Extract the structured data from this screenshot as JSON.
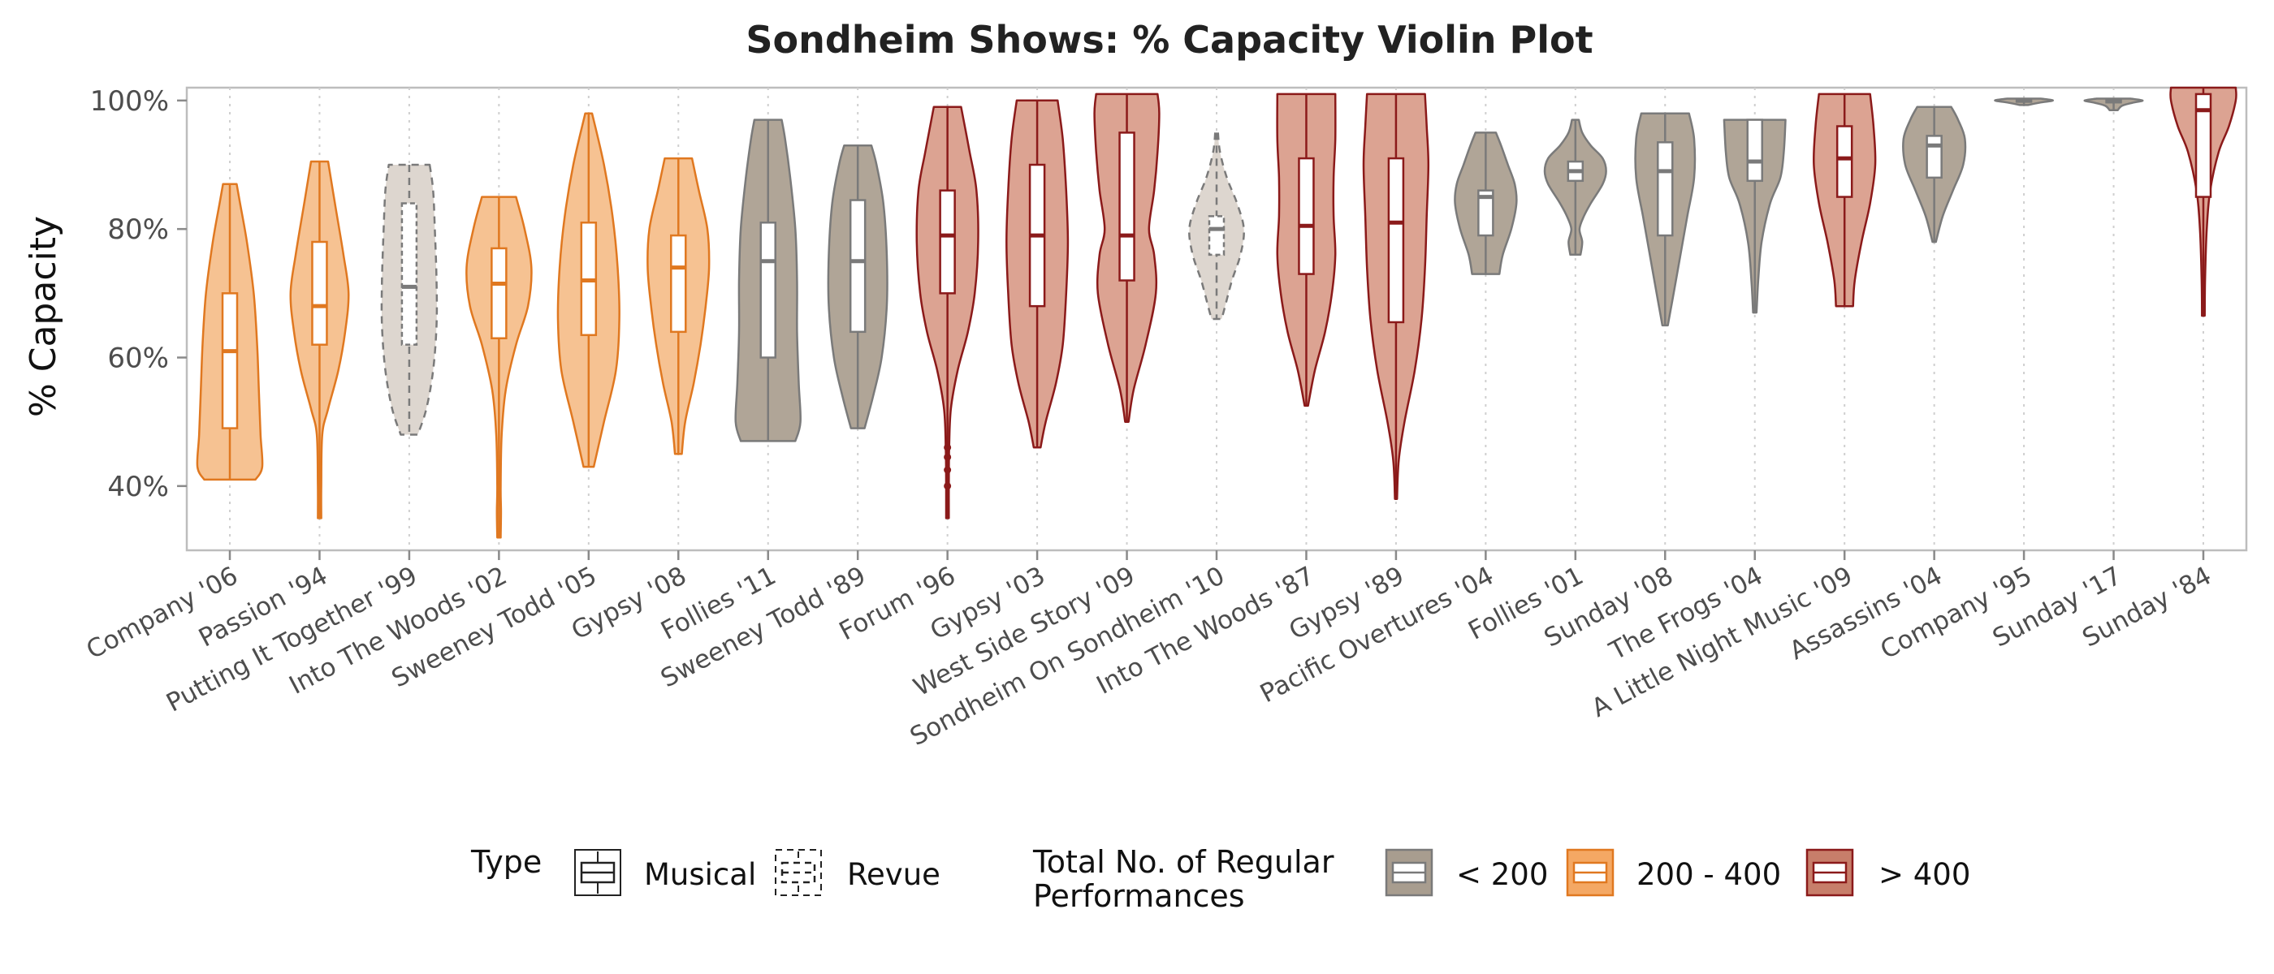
{
  "chart_data": {
    "type": "violin",
    "title": "Sondheim Shows: % Capacity Violin Plot",
    "xlabel": "",
    "ylabel": "% Capacity",
    "ylim": [
      30,
      102
    ],
    "yticks": [
      40,
      60,
      80,
      100
    ],
    "ytick_labels": [
      "40%",
      "60%",
      "80%",
      "100%"
    ],
    "grid": "vertical dotted",
    "legend_position": "bottom",
    "colors": {
      "lt200": "#b3a89a",
      "200to400": "#f6c090",
      "gt400": "#dba08f"
    },
    "edge_colors": {
      "lt200": "#7a7a7a",
      "200to400": "#e07820",
      "gt400": "#8b1a1a"
    },
    "shows": [
      {
        "label": "Company '06",
        "type": "Musical",
        "group": "200to400",
        "min": 41,
        "q1": 49,
        "median": 61,
        "q3": 70,
        "max": 87,
        "profile": [
          [
            41,
            0.75
          ],
          [
            43,
            0.95
          ],
          [
            48,
            0.9
          ],
          [
            55,
            0.85
          ],
          [
            62,
            0.8
          ],
          [
            70,
            0.7
          ],
          [
            78,
            0.5
          ],
          [
            84,
            0.3
          ],
          [
            87,
            0.2
          ]
        ]
      },
      {
        "label": "Passion '94",
        "type": "Musical",
        "group": "200to400",
        "min": 35,
        "q1": 62,
        "median": 68,
        "q3": 78,
        "max": 90.5,
        "profile": [
          [
            35,
            0.05
          ],
          [
            40,
            0.05
          ],
          [
            48,
            0.08
          ],
          [
            52,
            0.25
          ],
          [
            58,
            0.55
          ],
          [
            64,
            0.75
          ],
          [
            70,
            0.85
          ],
          [
            76,
            0.7
          ],
          [
            84,
            0.45
          ],
          [
            90.5,
            0.25
          ]
        ]
      },
      {
        "label": "Putting It Together '99",
        "type": "Revue",
        "group": "lt200",
        "min": 48,
        "q1": 62,
        "median": 71,
        "q3": 84,
        "max": 90,
        "profile": [
          [
            48,
            0.25
          ],
          [
            52,
            0.5
          ],
          [
            58,
            0.7
          ],
          [
            65,
            0.8
          ],
          [
            72,
            0.8
          ],
          [
            80,
            0.75
          ],
          [
            86,
            0.7
          ],
          [
            90,
            0.6
          ]
        ]
      },
      {
        "label": "Into The Woods '02",
        "type": "Musical",
        "group": "200to400",
        "min": 32,
        "q1": 63,
        "median": 71.5,
        "q3": 77,
        "max": 85,
        "profile": [
          [
            32,
            0.05
          ],
          [
            36,
            0.06
          ],
          [
            40,
            0.05
          ],
          [
            48,
            0.08
          ],
          [
            55,
            0.2
          ],
          [
            62,
            0.5
          ],
          [
            68,
            0.85
          ],
          [
            74,
            0.95
          ],
          [
            80,
            0.75
          ],
          [
            85,
            0.5
          ]
        ]
      },
      {
        "label": "Sweeney Todd '05",
        "type": "Musical",
        "group": "200to400",
        "min": 43,
        "q1": 63.5,
        "median": 72,
        "q3": 81,
        "max": 98,
        "profile": [
          [
            43,
            0.15
          ],
          [
            50,
            0.45
          ],
          [
            58,
            0.8
          ],
          [
            66,
            0.9
          ],
          [
            74,
            0.85
          ],
          [
            82,
            0.7
          ],
          [
            90,
            0.45
          ],
          [
            98,
            0.1
          ]
        ]
      },
      {
        "label": "Gypsy '08",
        "type": "Musical",
        "group": "200to400",
        "min": 45,
        "q1": 64,
        "median": 74,
        "q3": 79,
        "max": 91,
        "profile": [
          [
            45,
            0.1
          ],
          [
            50,
            0.2
          ],
          [
            56,
            0.45
          ],
          [
            62,
            0.65
          ],
          [
            68,
            0.8
          ],
          [
            74,
            0.9
          ],
          [
            80,
            0.85
          ],
          [
            86,
            0.6
          ],
          [
            91,
            0.4
          ]
        ]
      },
      {
        "label": "Follies '11",
        "type": "Musical",
        "group": "lt200",
        "min": 47,
        "q1": 60,
        "median": 75,
        "q3": 81,
        "max": 97,
        "profile": [
          [
            47,
            0.8
          ],
          [
            50,
            0.95
          ],
          [
            56,
            0.9
          ],
          [
            64,
            0.85
          ],
          [
            72,
            0.85
          ],
          [
            80,
            0.8
          ],
          [
            88,
            0.65
          ],
          [
            94,
            0.5
          ],
          [
            97,
            0.4
          ]
        ]
      },
      {
        "label": "Sweeney Todd '89",
        "type": "Musical",
        "group": "lt200",
        "min": 49,
        "q1": 64,
        "median": 75,
        "q3": 84.5,
        "max": 93,
        "profile": [
          [
            49,
            0.2
          ],
          [
            54,
            0.45
          ],
          [
            60,
            0.7
          ],
          [
            68,
            0.85
          ],
          [
            76,
            0.85
          ],
          [
            84,
            0.75
          ],
          [
            90,
            0.55
          ],
          [
            93,
            0.4
          ]
        ]
      },
      {
        "label": "Forum '96",
        "type": "Musical",
        "group": "gt400",
        "min": 35,
        "q1": 70,
        "median": 79,
        "q3": 86,
        "max": 99,
        "outliers": [
          40,
          42.5,
          44.5,
          46
        ],
        "profile": [
          [
            35,
            0.04
          ],
          [
            40,
            0.04
          ],
          [
            46,
            0.05
          ],
          [
            52,
            0.1
          ],
          [
            58,
            0.3
          ],
          [
            64,
            0.6
          ],
          [
            70,
            0.8
          ],
          [
            78,
            0.9
          ],
          [
            86,
            0.85
          ],
          [
            92,
            0.65
          ],
          [
            99,
            0.4
          ]
        ]
      },
      {
        "label": "Gypsy '03",
        "type": "Musical",
        "group": "gt400",
        "min": 46,
        "q1": 68,
        "median": 79,
        "q3": 90,
        "max": 100,
        "profile": [
          [
            46,
            0.1
          ],
          [
            50,
            0.25
          ],
          [
            56,
            0.55
          ],
          [
            62,
            0.75
          ],
          [
            70,
            0.85
          ],
          [
            78,
            0.9
          ],
          [
            86,
            0.85
          ],
          [
            94,
            0.75
          ],
          [
            100,
            0.6
          ]
        ]
      },
      {
        "label": "West Side Story '09",
        "type": "Musical",
        "group": "gt400",
        "min": 50,
        "q1": 72,
        "median": 79,
        "q3": 95,
        "max": 101,
        "profile": [
          [
            50,
            0.05
          ],
          [
            55,
            0.2
          ],
          [
            62,
            0.55
          ],
          [
            70,
            0.85
          ],
          [
            76,
            0.8
          ],
          [
            80,
            0.65
          ],
          [
            86,
            0.8
          ],
          [
            92,
            0.9
          ],
          [
            98,
            0.95
          ],
          [
            101,
            0.9
          ]
        ]
      },
      {
        "label": "Sondheim On Sondheim '10",
        "type": "Revue",
        "group": "lt200",
        "min": 66,
        "q1": 76,
        "median": 80,
        "q3": 82,
        "max": 95,
        "profile": [
          [
            66,
            0.15
          ],
          [
            68,
            0.25
          ],
          [
            72,
            0.45
          ],
          [
            76,
            0.7
          ],
          [
            80,
            0.8
          ],
          [
            84,
            0.6
          ],
          [
            88,
            0.3
          ],
          [
            92,
            0.1
          ],
          [
            95,
            0.04
          ]
        ]
      },
      {
        "label": "Into The Woods '87",
        "type": "Musical",
        "group": "gt400",
        "min": 52.5,
        "q1": 73,
        "median": 80.5,
        "q3": 91,
        "max": 101,
        "profile": [
          [
            52.5,
            0.05
          ],
          [
            58,
            0.25
          ],
          [
            64,
            0.55
          ],
          [
            70,
            0.75
          ],
          [
            76,
            0.85
          ],
          [
            82,
            0.8
          ],
          [
            88,
            0.8
          ],
          [
            94,
            0.85
          ],
          [
            101,
            0.85
          ]
        ]
      },
      {
        "label": "Gypsy '89",
        "type": "Musical",
        "group": "gt400",
        "min": 38,
        "q1": 65.5,
        "median": 81,
        "q3": 91,
        "max": 101,
        "profile": [
          [
            38,
            0.03
          ],
          [
            44,
            0.08
          ],
          [
            50,
            0.25
          ],
          [
            58,
            0.55
          ],
          [
            66,
            0.75
          ],
          [
            74,
            0.85
          ],
          [
            82,
            0.9
          ],
          [
            90,
            0.95
          ],
          [
            96,
            0.9
          ],
          [
            101,
            0.85
          ]
        ]
      },
      {
        "label": "Pacific Overtures '04",
        "type": "Musical",
        "group": "lt200",
        "min": 73,
        "q1": 79,
        "median": 85,
        "q3": 86,
        "max": 95,
        "profile": [
          [
            73,
            0.4
          ],
          [
            76,
            0.5
          ],
          [
            80,
            0.75
          ],
          [
            84,
            0.9
          ],
          [
            87,
            0.85
          ],
          [
            90,
            0.65
          ],
          [
            93,
            0.45
          ],
          [
            95,
            0.3
          ]
        ]
      },
      {
        "label": "Follies '01",
        "type": "Musical",
        "group": "lt200",
        "min": 76,
        "q1": 87.5,
        "median": 89,
        "q3": 90.5,
        "max": 97,
        "profile": [
          [
            76,
            0.15
          ],
          [
            78,
            0.2
          ],
          [
            80,
            0.12
          ],
          [
            82,
            0.25
          ],
          [
            84,
            0.45
          ],
          [
            87,
            0.8
          ],
          [
            89,
            0.9
          ],
          [
            91,
            0.8
          ],
          [
            93,
            0.45
          ],
          [
            95,
            0.2
          ],
          [
            97,
            0.1
          ]
        ]
      },
      {
        "label": "Sunday '08",
        "type": "Musical",
        "group": "lt200",
        "min": 65,
        "q1": 79,
        "median": 89,
        "q3": 93.5,
        "max": 98,
        "profile": [
          [
            65,
            0.08
          ],
          [
            70,
            0.25
          ],
          [
            76,
            0.45
          ],
          [
            82,
            0.65
          ],
          [
            88,
            0.85
          ],
          [
            94,
            0.85
          ],
          [
            98,
            0.7
          ]
        ]
      },
      {
        "label": "The Frogs '04",
        "type": "Musical",
        "group": "lt200",
        "min": 67,
        "q1": 87.5,
        "median": 90.5,
        "q3": 97,
        "max": 97,
        "profile": [
          [
            67,
            0.05
          ],
          [
            72,
            0.1
          ],
          [
            78,
            0.2
          ],
          [
            84,
            0.45
          ],
          [
            88,
            0.75
          ],
          [
            92,
            0.85
          ],
          [
            97,
            0.9
          ]
        ]
      },
      {
        "label": "A Little Night Music '09",
        "type": "Musical",
        "group": "gt400",
        "min": 68,
        "q1": 85,
        "median": 91,
        "q3": 96,
        "max": 101,
        "profile": [
          [
            68,
            0.25
          ],
          [
            72,
            0.3
          ],
          [
            78,
            0.5
          ],
          [
            84,
            0.75
          ],
          [
            90,
            0.9
          ],
          [
            96,
            0.85
          ],
          [
            101,
            0.75
          ]
        ]
      },
      {
        "label": "Assassins '04",
        "type": "Musical",
        "group": "lt200",
        "min": 78,
        "q1": 88,
        "median": 93,
        "q3": 94.5,
        "max": 99,
        "profile": [
          [
            78,
            0.05
          ],
          [
            82,
            0.25
          ],
          [
            86,
            0.55
          ],
          [
            90,
            0.85
          ],
          [
            94,
            0.9
          ],
          [
            97,
            0.7
          ],
          [
            99,
            0.5
          ]
        ]
      },
      {
        "label": "Company '95",
        "type": "Musical",
        "group": "lt200",
        "min": 99.3,
        "q1": 99.8,
        "median": 100,
        "q3": 100.1,
        "max": 100.3,
        "profile": [
          [
            99.3,
            0.12
          ],
          [
            99.7,
            0.5
          ],
          [
            100,
            0.85
          ],
          [
            100.3,
            0.5
          ]
        ]
      },
      {
        "label": "Sunday '17",
        "type": "Musical",
        "group": "lt200",
        "min": 98.5,
        "q1": 99.7,
        "median": 100,
        "q3": 100.1,
        "max": 100.3,
        "profile": [
          [
            98.5,
            0.12
          ],
          [
            99.2,
            0.25
          ],
          [
            99.7,
            0.6
          ],
          [
            100,
            0.85
          ],
          [
            100.3,
            0.5
          ]
        ]
      },
      {
        "label": "Sunday '84",
        "type": "Musical",
        "group": "gt400",
        "min": 66.5,
        "q1": 85,
        "median": 98.5,
        "q3": 101,
        "max": 102,
        "profile": [
          [
            66.5,
            0.04
          ],
          [
            72,
            0.05
          ],
          [
            80,
            0.1
          ],
          [
            86,
            0.2
          ],
          [
            92,
            0.45
          ],
          [
            96,
            0.75
          ],
          [
            100,
            0.95
          ],
          [
            102,
            0.95
          ]
        ]
      }
    ],
    "legend": {
      "type_title": "Type",
      "type_items": [
        "Musical",
        "Revue"
      ],
      "perf_title_line1": "Total No. of Regular",
      "perf_title_line2": "Performances",
      "perf_items": [
        {
          "key": "lt200",
          "label": "< 200"
        },
        {
          "key": "200to400",
          "label": "200 - 400"
        },
        {
          "key": "gt400",
          "label": "> 400"
        }
      ]
    }
  }
}
